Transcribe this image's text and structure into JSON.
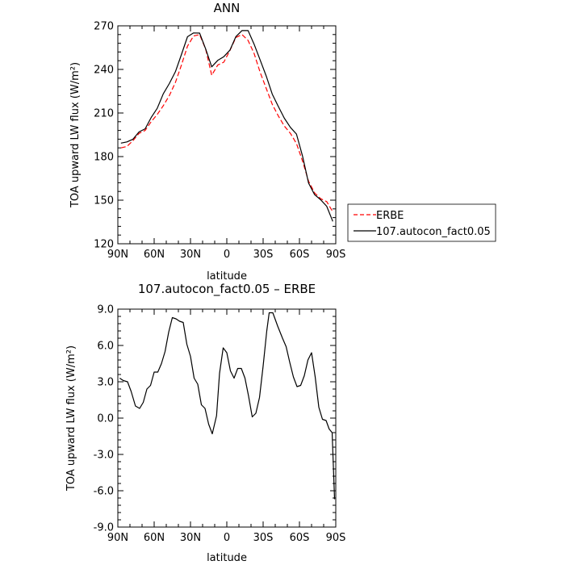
{
  "chart_data": [
    {
      "type": "line",
      "title": "ANN",
      "xlabel": "latitude",
      "ylabel": "TOA upward LW flux (W/m²)",
      "xlim": [
        90,
        -90
      ],
      "ylim": [
        120,
        270
      ],
      "xticks": [
        90,
        60,
        30,
        0,
        -30,
        -60,
        -90
      ],
      "xtick_labels": [
        "90N",
        "60N",
        "30N",
        "0",
        "30S",
        "60S",
        "90S"
      ],
      "yticks": [
        120,
        150,
        180,
        210,
        240,
        270
      ],
      "ytick_labels": [
        "120",
        "150",
        "180",
        "210",
        "240",
        "270"
      ],
      "grid": false,
      "legend_position": "right, outside plot",
      "series": [
        {
          "name": "ERBE",
          "color": "#ff0000",
          "style": "dashed",
          "x": [
            87.5,
            82.5,
            77.5,
            72.5,
            67.5,
            62.5,
            57.5,
            52.5,
            47.5,
            42.5,
            37.5,
            32.5,
            27.5,
            22.5,
            17.5,
            12.5,
            7.5,
            2.5,
            -2.5,
            -7.5,
            -12.5,
            -17.5,
            -22.5,
            -27.5,
            -32.5,
            -37.5,
            -42.5,
            -47.5,
            -52.5,
            -57.5,
            -62.5,
            -67.5,
            -72.5,
            -77.5,
            -82.5,
            -87.5
          ],
          "values": [
            186,
            187,
            191,
            196,
            198,
            204,
            209,
            215,
            222,
            231,
            243,
            256,
            263,
            264,
            254,
            236,
            243,
            245,
            253,
            262,
            264,
            260,
            251,
            238,
            227,
            216,
            208,
            201,
            196,
            189,
            177,
            163,
            155,
            151,
            149,
            142
          ]
        },
        {
          "name": "107.autocon_fact0.05",
          "color": "#000000",
          "style": "solid",
          "x": [
            87.5,
            82.5,
            77.5,
            72.5,
            67.5,
            62.5,
            57.5,
            52.5,
            47.5,
            42.5,
            37.5,
            32.5,
            27.5,
            22.5,
            17.5,
            12.5,
            7.5,
            2.5,
            -2.5,
            -7.5,
            -12.5,
            -17.5,
            -22.5,
            -27.5,
            -32.5,
            -37.5,
            -42.5,
            -47.5,
            -52.5,
            -57.5,
            -62.5,
            -67.5,
            -72.5,
            -77.5,
            -82.5,
            -87.5
          ],
          "values": [
            189.3,
            190.1,
            192.0,
            197.0,
            199.1,
            206.9,
            213.2,
            223.2,
            230.3,
            238.4,
            250.3,
            262.5,
            265.1,
            265.0,
            254.1,
            241.8,
            246.2,
            248.8,
            253.2,
            262.6,
            266.7,
            266.8,
            257.4,
            246.5,
            235.5,
            223.0,
            214.5,
            206.4,
            200.1,
            195.5,
            180.4,
            161.7,
            153.8,
            150.3,
            145.8,
            135.4
          ]
        }
      ]
    },
    {
      "type": "line",
      "title": "107.autocon_fact0.05 – ERBE",
      "xlabel": "latitude",
      "ylabel": "TOA upward LW flux (W/m²)",
      "xlim": [
        90,
        -90
      ],
      "ylim": [
        -9,
        9
      ],
      "xticks": [
        90,
        60,
        30,
        0,
        -30,
        -60,
        -90
      ],
      "xtick_labels": [
        "90N",
        "60N",
        "30N",
        "0",
        "30S",
        "60S",
        "90S"
      ],
      "yticks": [
        -9,
        -6,
        -3,
        0,
        3,
        6,
        9
      ],
      "ytick_labels": [
        "-9.0",
        "-6.0",
        "-3.0",
        "0.0",
        "3.0",
        "6.0",
        "9.0"
      ],
      "grid": false,
      "series": [
        {
          "color": "#000000",
          "style": "solid",
          "x": [
            88.5,
            85.5,
            82,
            79,
            75.5,
            72,
            69,
            66,
            63,
            60,
            57,
            54,
            51,
            48,
            45,
            42,
            39,
            36,
            33,
            30,
            27,
            24,
            21,
            18,
            15,
            12,
            8.5,
            6,
            3,
            0,
            -3,
            -6,
            -9,
            -12,
            -15,
            -18,
            -21,
            -24,
            -27,
            -30,
            -33,
            -35,
            -38,
            -42,
            -46,
            -49,
            -52,
            -55,
            -58,
            -61,
            -64,
            -67,
            -70,
            -73,
            -76,
            -79,
            -82,
            -84.5,
            -87,
            -89
          ],
          "values": [
            3.3,
            3.1,
            3.0,
            2.2,
            1.0,
            0.8,
            1.3,
            2.4,
            2.7,
            3.8,
            3.8,
            4.5,
            5.5,
            7.1,
            8.3,
            8.2,
            8.0,
            7.9,
            6.1,
            5.1,
            3.3,
            2.8,
            1.1,
            0.8,
            -0.5,
            -1.3,
            0.2,
            3.7,
            5.8,
            5.4,
            3.9,
            3.3,
            4.1,
            4.1,
            3.3,
            1.8,
            0.1,
            0.4,
            1.7,
            4.3,
            7.2,
            8.7,
            8.7,
            7.6,
            6.6,
            5.9,
            4.6,
            3.4,
            2.6,
            2.7,
            3.5,
            4.8,
            5.4,
            3.4,
            0.9,
            -0.1,
            -0.2,
            -0.9,
            -1.2,
            -6.7
          ]
        }
      ]
    }
  ]
}
